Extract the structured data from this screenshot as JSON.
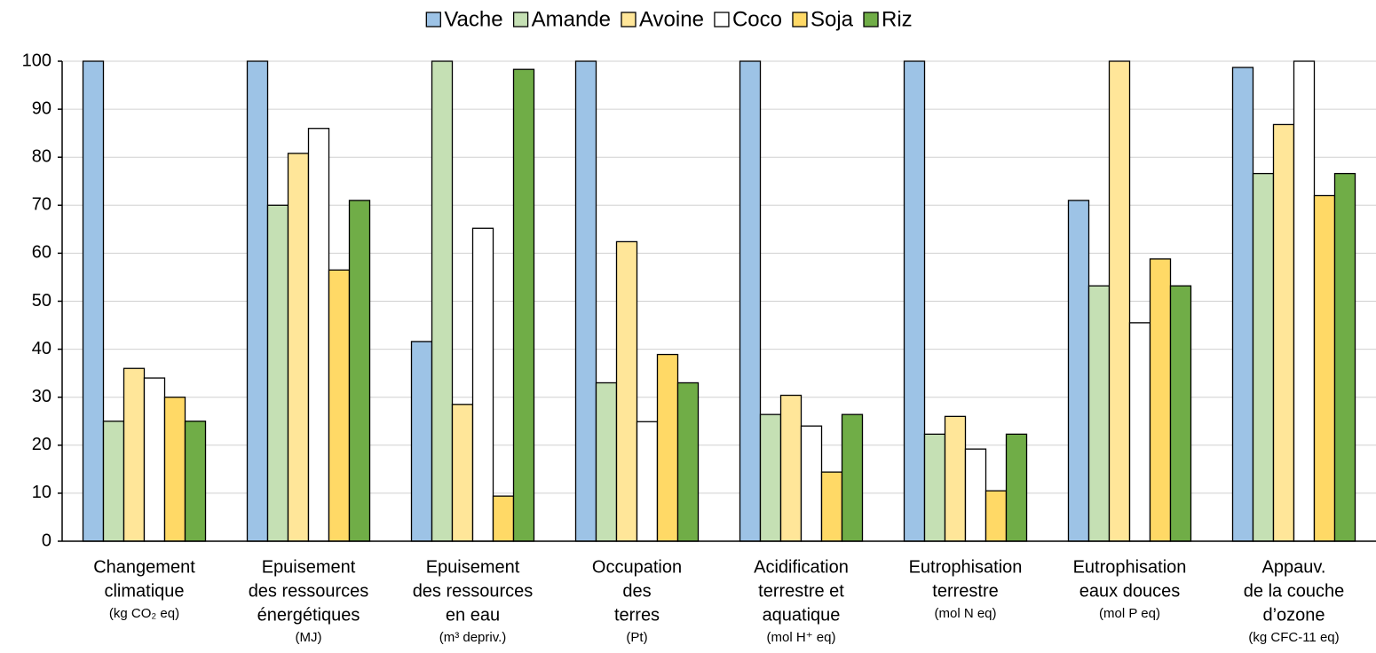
{
  "chart_data": {
    "type": "bar",
    "categories": [
      [
        "Changement",
        "climatique"
      ],
      [
        "Epuisement",
        "des ressources",
        "énergétiques"
      ],
      [
        "Epuisement",
        "des ressources",
        "en eau"
      ],
      [
        "Occupation",
        "des",
        "terres"
      ],
      [
        "Acidification",
        "terrestre et",
        "aquatique"
      ],
      [
        "Eutrophisation",
        "terrestre"
      ],
      [
        "Eutrophisation",
        "eaux douces"
      ],
      [
        "Appauv.",
        "de la couche",
        "d’ozone"
      ]
    ],
    "units": [
      "(kg CO₂ eq)",
      "(MJ)",
      "(m³ depriv.)",
      "(Pt)",
      "(mol H⁺ eq)",
      "(mol N eq)",
      "(mol P eq)",
      "(kg CFC-11 eq)"
    ],
    "series": [
      {
        "name": "Vache",
        "color": "#9dc3e6",
        "values": [
          100,
          100,
          41.6,
          100,
          100,
          100,
          71,
          98.7
        ]
      },
      {
        "name": "Amande",
        "color": "#c5e0b4",
        "values": [
          25,
          70,
          100,
          33,
          26.4,
          22.3,
          53.2,
          76.6
        ]
      },
      {
        "name": "Avoine",
        "color": "#ffe699",
        "values": [
          36,
          80.8,
          28.5,
          62.4,
          30.4,
          26,
          100,
          86.8
        ]
      },
      {
        "name": "Coco",
        "color": "#ffffff",
        "values": [
          34,
          86,
          65.2,
          24.9,
          24,
          19.2,
          45.5,
          100
        ]
      },
      {
        "name": "Soja",
        "color": "#ffd966",
        "values": [
          30,
          56.5,
          9.4,
          38.9,
          14.4,
          10.5,
          58.8,
          72
        ]
      },
      {
        "name": "Riz",
        "color": "#70ad47",
        "values": [
          25,
          71,
          98.3,
          33,
          26.4,
          22.3,
          53.2,
          76.6
        ]
      }
    ],
    "ylim": [
      0,
      100
    ],
    "yticks": [
      0,
      10,
      20,
      30,
      40,
      50,
      60,
      70,
      80,
      90,
      100
    ],
    "grid": true,
    "legend": "top"
  }
}
